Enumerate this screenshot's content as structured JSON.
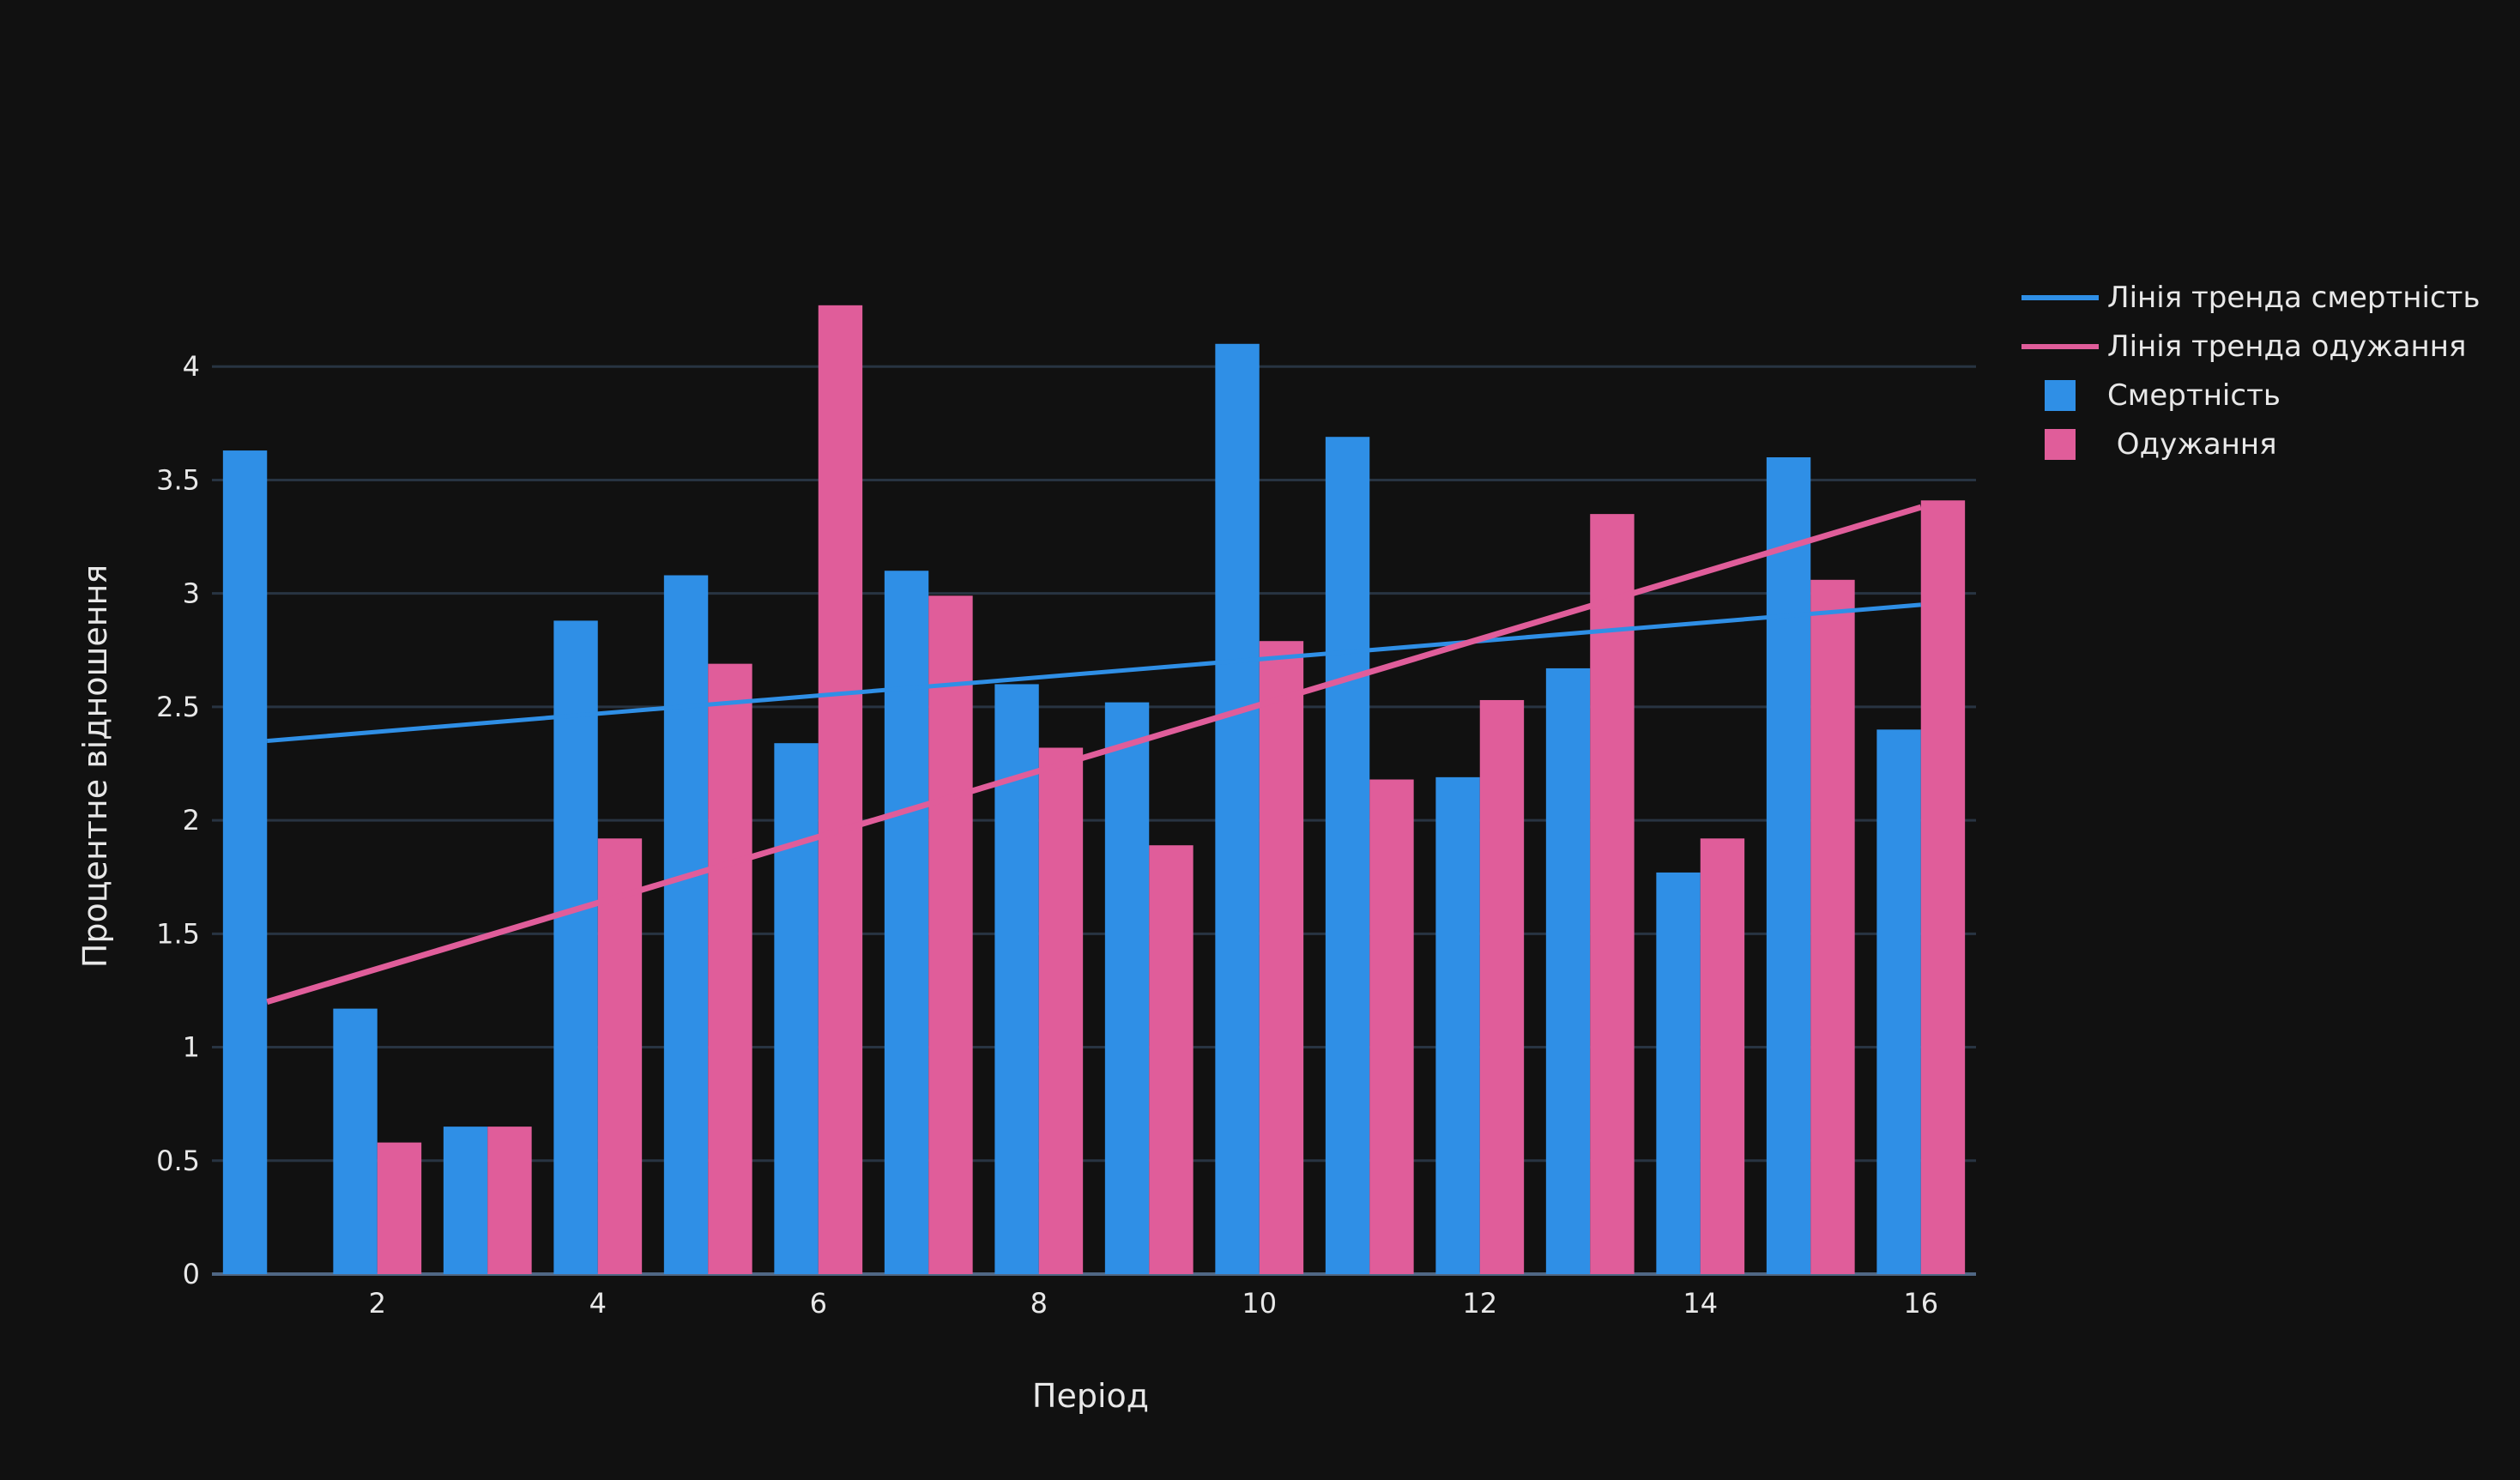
{
  "chart_data": {
    "type": "bar",
    "xlabel": "Період",
    "ylabel": "Процентне відношення",
    "xlim": [
      0.5,
      16.5
    ],
    "ylim": [
      0,
      4.5
    ],
    "x_ticks": [
      2,
      4,
      6,
      8,
      10,
      12,
      14,
      16
    ],
    "y_ticks": [
      0,
      0.5,
      1,
      1.5,
      2,
      2.5,
      3,
      3.5,
      4
    ],
    "y_tick_labels": [
      "0",
      "0.5",
      "1",
      "1.5",
      "2",
      "2.5",
      "3",
      "3.5",
      "4"
    ],
    "grid": true,
    "legend_position": "top-right",
    "x": [
      1,
      2,
      3,
      4,
      5,
      6,
      7,
      8,
      9,
      10,
      11,
      12,
      13,
      14,
      15,
      16
    ],
    "series": [
      {
        "name": "Смертність",
        "kind": "bar",
        "color": "#2f8fe6",
        "values": [
          3.63,
          1.17,
          0.65,
          2.88,
          3.08,
          2.34,
          3.1,
          2.6,
          2.52,
          4.1,
          3.69,
          2.19,
          2.67,
          1.77,
          3.6,
          2.4
        ]
      },
      {
        "name": " Одужання",
        "kind": "bar",
        "color": "#e05d9a",
        "values": [
          0,
          0.58,
          0.65,
          1.92,
          2.69,
          4.27,
          2.99,
          2.32,
          1.89,
          2.79,
          2.18,
          2.53,
          3.35,
          1.92,
          3.06,
          3.41
        ]
      },
      {
        "name": "Лінія тренда смертність",
        "kind": "line",
        "color": "#2f8fe6",
        "x": [
          1,
          16
        ],
        "values": [
          2.35,
          2.95
        ]
      },
      {
        "name": "Лінія тренда одужання",
        "kind": "line",
        "color": "#e05d9a",
        "x": [
          1,
          16
        ],
        "values": [
          1.2,
          3.38
        ]
      }
    ],
    "legend_order": [
      2,
      3,
      0,
      1
    ]
  },
  "colors": {
    "background": "#111111",
    "grid": "#283442",
    "text": "#e8e8e8"
  }
}
